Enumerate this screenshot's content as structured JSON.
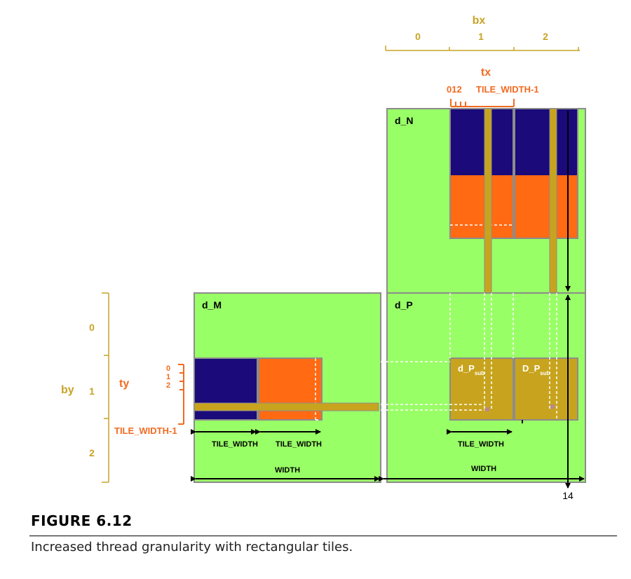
{
  "labels": {
    "bx": "bx",
    "bx_ticks": [
      "0",
      "1",
      "2"
    ],
    "tx": "tx",
    "tx_ticks": "012",
    "tile_width_minus_1": "TILE_WIDTH-1",
    "by": "by",
    "by_ticks": [
      "0",
      "1",
      "2"
    ],
    "ty": "ty",
    "ty_ticks": [
      "0",
      "1",
      "2"
    ],
    "ty_tile_width_minus_1": "TILE_WIDTH-1",
    "d_N": "d_N",
    "d_M": "d_M",
    "d_P": "d_P",
    "d_Psub_1": "d_P",
    "d_Psub_2": "D_P",
    "sub": "sub",
    "tile_width": "TILE_WIDTH",
    "width": "WIDTH",
    "page_number": "14"
  },
  "caption": {
    "title": "FIGURE 6.12",
    "text": "Increased thread granularity with rectangular tiles."
  },
  "colors": {
    "green": "#99FF66",
    "navy": "#1A0A7A",
    "orange": "#FF6A13",
    "gold": "#C8A41E",
    "gold_text": "#C9A227",
    "orange_text": "#F26A21",
    "border": "#8C8C8C"
  }
}
